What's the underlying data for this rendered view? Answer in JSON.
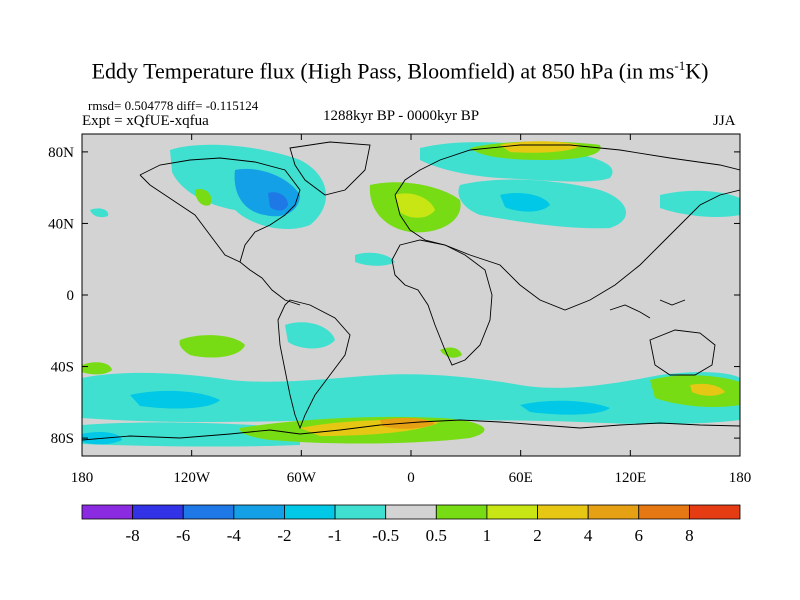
{
  "title": {
    "main": "Eddy Temperature flux (High Pass, Bloomfield) at 850 hPa (in ms",
    "sup": "-1",
    "end": "K)"
  },
  "stats": "rmsd= 0.504778 diff= -0.115124",
  "expt": "Expt = xQfUE-xqfua",
  "period": "1288kyr BP - 0000kyr BP",
  "season": "JJA",
  "map": {
    "projection": "cylindrical equidistant",
    "lon_range": [
      -180,
      180
    ],
    "lat_range": [
      -90,
      90
    ],
    "background_color": "#d3d3d3",
    "coastline_color": "#000000",
    "x_ticks": [
      "180",
      "120W",
      "60W",
      "0",
      "60E",
      "120E",
      "180"
    ],
    "y_ticks": [
      "80N",
      "40N",
      "0",
      "40S",
      "80S"
    ]
  },
  "colorbar": {
    "labels": [
      "-8",
      "-6",
      "-4",
      "-2",
      "-1",
      "-0.5",
      "0.5",
      "1",
      "2",
      "4",
      "6",
      "8"
    ],
    "colors": [
      "#8a2be2",
      "#3232e6",
      "#1e78e6",
      "#14a0e6",
      "#00c8e6",
      "#40e0d0",
      "#d3d3d3",
      "#78dc14",
      "#c8e614",
      "#e6c814",
      "#e6a014",
      "#e67814",
      "#e63c14"
    ]
  }
}
